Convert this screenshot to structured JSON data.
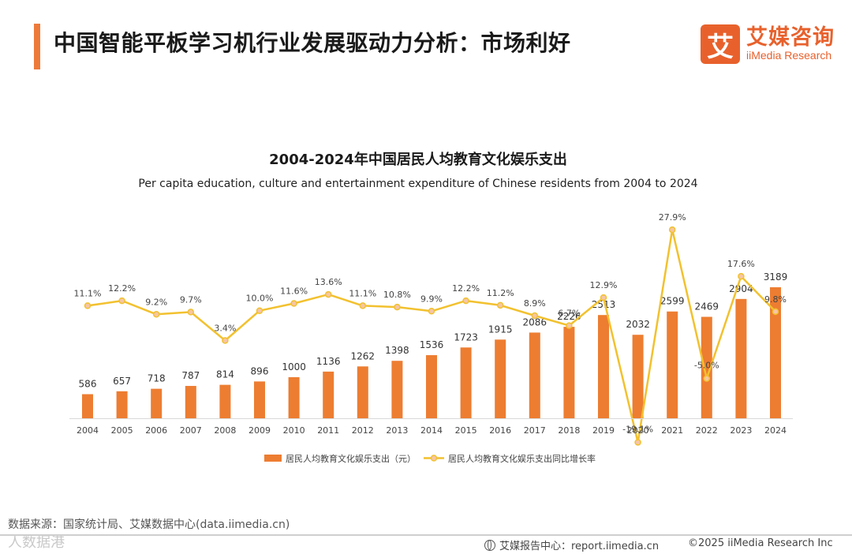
{
  "header": {
    "title": "中国智能平板学习机行业发展驱动力分析：市场利好",
    "logo_cn": "艾媒咨询",
    "logo_en": "iiMedia Research",
    "logo_mark": "艾"
  },
  "chart_data": {
    "type": "bar+line",
    "title": "2004-2024年中国居民人均教育文化娱乐支出",
    "subtitle": "Per capita education, culture and entertainment expenditure of Chinese residents from 2004 to 2024",
    "categories": [
      "2004",
      "2005",
      "2006",
      "2007",
      "2008",
      "2009",
      "2010",
      "2011",
      "2012",
      "2013",
      "2014",
      "2015",
      "2016",
      "2017",
      "2018",
      "2019",
      "2020",
      "2021",
      "2022",
      "2023",
      "2024"
    ],
    "series": [
      {
        "name": "居民人均教育文化娱乐支出（元）",
        "type": "bar",
        "values": [
          586,
          657,
          718,
          787,
          814,
          896,
          1000,
          1136,
          1262,
          1398,
          1536,
          1723,
          1915,
          2086,
          2226,
          2513,
          2032,
          2599,
          2469,
          2904,
          3189
        ],
        "labels": [
          "586",
          "657",
          "718",
          "787",
          "814",
          "896",
          "1000",
          "1136",
          "1262",
          "1398",
          "1536",
          "1723",
          "1915",
          "2086",
          "2226",
          "2513",
          "2032",
          "2599",
          "2469",
          "2904",
          "3189"
        ]
      },
      {
        "name": "居民人均教育文化娱乐支出同比增长率",
        "type": "line",
        "values": [
          11.1,
          12.2,
          9.2,
          9.7,
          3.4,
          10.0,
          11.6,
          13.6,
          11.1,
          10.8,
          9.9,
          12.2,
          11.2,
          8.9,
          6.7,
          12.9,
          -19.1,
          27.9,
          -5.0,
          17.6,
          9.8
        ],
        "labels": [
          "11.1%",
          "12.2%",
          "9.2%",
          "9.7%",
          "3.4%",
          "10.0%",
          "11.6%",
          "13.6%",
          "11.1%",
          "10.8%",
          "9.9%",
          "12.2%",
          "11.2%",
          "8.9%",
          "6.7%",
          "12.9%",
          "-19.1%",
          "27.9%",
          "-5.0%",
          "17.6%",
          "9.8%"
        ]
      }
    ],
    "colors": {
      "bar": "#ed7d31",
      "line": "#f2c12e",
      "marker_fill": "#f6c5a6"
    },
    "legend_position": "bottom"
  },
  "footer": {
    "source": "数据来源：国家统计局、艾媒数据中心(data.iimedia.cn)",
    "watermark": "人数据港",
    "report": "艾媒报告中心：report.iimedia.cn",
    "copyright": "©2025  iiMedia Research  Inc"
  }
}
